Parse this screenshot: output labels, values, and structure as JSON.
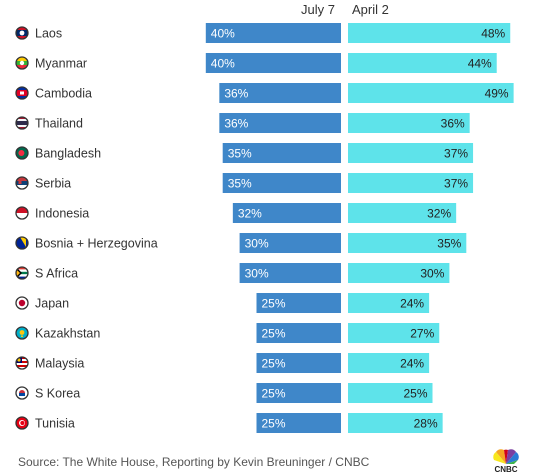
{
  "chart_data": {
    "type": "bar",
    "title": "",
    "series": [
      {
        "name": "July 7",
        "values": [
          40,
          40,
          36,
          36,
          35,
          35,
          32,
          30,
          30,
          25,
          25,
          25,
          25,
          25
        ]
      },
      {
        "name": "April 2",
        "values": [
          48,
          44,
          49,
          36,
          37,
          37,
          32,
          35,
          30,
          24,
          27,
          24,
          25,
          28
        ]
      }
    ],
    "categories": [
      "Laos",
      "Myanmar",
      "Cambodia",
      "Thailand",
      "Bangladesh",
      "Serbia",
      "Indonesia",
      "Bosnia + Herzegovina",
      "S Africa",
      "Japan",
      "Kazakhstan",
      "Malaysia",
      "S Korea",
      "Tunisia"
    ],
    "value_suffix": "%",
    "xlim": [
      0,
      50
    ]
  },
  "colors": {
    "july": "#3f87c9",
    "april": "#5ee3ea"
  },
  "flags": [
    "laos-flag-icon",
    "myanmar-flag-icon",
    "cambodia-flag-icon",
    "thailand-flag-icon",
    "bangladesh-flag-icon",
    "serbia-flag-icon",
    "indonesia-flag-icon",
    "bosnia-flag-icon",
    "south-africa-flag-icon",
    "japan-flag-icon",
    "kazakhstan-flag-icon",
    "malaysia-flag-icon",
    "south-korea-flag-icon",
    "tunisia-flag-icon"
  ],
  "source": "Source: The White House, Reporting by Kevin Breuninger / CNBC",
  "logo_text": "CNBC"
}
